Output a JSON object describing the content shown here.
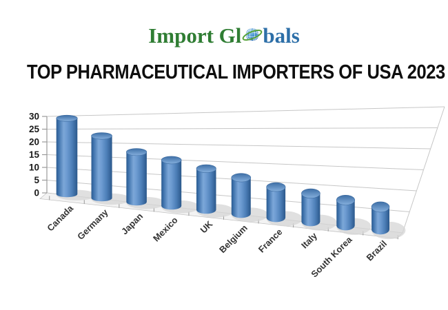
{
  "logo": {
    "text_before_globe": "Import Gl",
    "text_after_globe": "bals",
    "green": "#2f7d33",
    "blue": "#2d6fa8",
    "globe": {
      "sphere_color": "#2b76b9",
      "ring_color": "#55a238"
    }
  },
  "header": {
    "title": "TOP PHARMACEUTICAL IMPORTERS OF USA 2023"
  },
  "chart_data": {
    "type": "bar",
    "style": "3d-cylinder",
    "title": "TOP PHARMACEUTICAL IMPORTERS OF USA 2023",
    "categories": [
      "Canada",
      "Germany",
      "Japan",
      "Mexico",
      "UK",
      "Belgium",
      "France",
      "Italy",
      "South Korea",
      "Brazil"
    ],
    "values": [
      28,
      22,
      17,
      15,
      13,
      11,
      9,
      8,
      7,
      6
    ],
    "xlabel": "",
    "ylabel": "",
    "ylim": [
      0,
      30
    ],
    "yticks": [
      0,
      5,
      10,
      15,
      20,
      25,
      30
    ],
    "grid": true,
    "legend": false,
    "colors": {
      "bar": "#4f81bd",
      "bar_edge": "#2d5c8f",
      "bar_highlight": "#7ca7d8",
      "gridline": "#c6c6c6",
      "axis": "#999999",
      "tick_label": "#1a1a1a",
      "category_label": "#333333",
      "shadow": "#d6d6d6",
      "background": "#ffffff"
    }
  }
}
